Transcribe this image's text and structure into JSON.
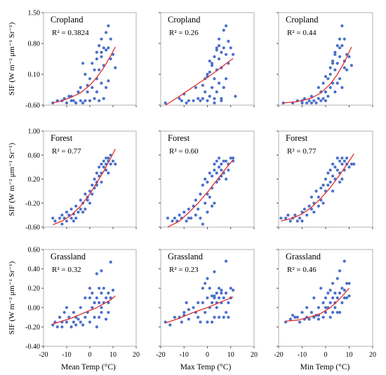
{
  "style": {
    "point_color": "#4a6fc9",
    "fit_color": "#e03030",
    "frame_color": "#b0b0b0"
  },
  "y_axis_label": "SIF (W m⁻² μm⁻¹ Sr⁻¹)",
  "x_axis_labels": [
    "Mean Temp (°C)",
    "Max Temp (°C)",
    "Min Temp (°C)"
  ],
  "x_ticks": [
    "-20",
    "-10",
    "0",
    "10",
    "20"
  ],
  "rows": [
    {
      "y_ticks": [
        "1.50",
        "0.80",
        "0.10",
        "-0.60"
      ]
    },
    {
      "y_ticks": [
        "1.00",
        "0.60",
        "0.20",
        "-0.20",
        "-0.60"
      ]
    },
    {
      "y_ticks": [
        "0.60",
        "0.40",
        "0.20",
        "0.00",
        "-0.20",
        "-0.40"
      ]
    }
  ],
  "chart_data": [
    {
      "type": "scatter",
      "title": "Cropland",
      "r2_label": "R² = 0.3824",
      "xlim": [
        -20,
        20
      ],
      "ylim": [
        -0.6,
        1.5
      ],
      "x_axis": "Mean Temp (°C)",
      "fit": "exponential",
      "x": [
        -16,
        -14,
        -12,
        -11,
        -10,
        -9,
        -8,
        -7,
        -6,
        -5,
        -4,
        -4,
        -3,
        -3,
        -2,
        -2,
        -1,
        -1,
        0,
        0,
        1,
        1,
        2,
        2,
        3,
        3,
        3,
        4,
        4,
        4,
        5,
        5,
        5,
        6,
        6,
        6,
        7,
        7,
        7,
        8,
        8,
        8,
        9,
        9,
        10,
        11,
        5,
        3,
        -6,
        -8
      ],
      "y": [
        -0.55,
        -0.5,
        -0.5,
        -0.45,
        -0.55,
        -0.4,
        -0.5,
        -0.5,
        -0.55,
        -0.3,
        -0.5,
        -0.2,
        -0.55,
        0.35,
        -0.5,
        0.1,
        -0.3,
        -0.15,
        -0.5,
        0.0,
        0.35,
        -0.2,
        0.2,
        -0.45,
        0.6,
        0.0,
        -0.3,
        0.75,
        0.2,
        -0.5,
        0.9,
        0.5,
        -0.1,
        0.7,
        0.3,
        -0.45,
        1.05,
        0.65,
        -0.2,
        1.2,
        0.7,
        -0.05,
        0.9,
        0.45,
        0.55,
        0.25,
        0.6,
        0.45,
        -0.55,
        -0.4
      ],
      "fit_x": [
        -16,
        -12,
        -8,
        -4,
        0,
        3,
        6,
        9,
        11
      ],
      "fit_y": [
        -0.55,
        -0.5,
        -0.42,
        -0.32,
        -0.15,
        0.03,
        0.25,
        0.52,
        0.72
      ]
    },
    {
      "type": "scatter",
      "title": "Cropland",
      "r2_label": "R² = 0.26",
      "xlim": [
        -20,
        20
      ],
      "ylim": [
        -0.6,
        1.5
      ],
      "x_axis": "Max Temp (°C)",
      "fit": "exponential",
      "x": [
        -18,
        -12,
        -11,
        -10,
        -9,
        -8,
        -6,
        -5,
        -4,
        -3,
        -2,
        -1,
        -1,
        0,
        0,
        1,
        1,
        2,
        2,
        3,
        3,
        3,
        4,
        4,
        4,
        5,
        5,
        5,
        6,
        6,
        6,
        7,
        7,
        7,
        8,
        8,
        8,
        9,
        9,
        10,
        11,
        12,
        -2,
        0,
        2,
        4,
        6,
        1,
        5,
        3
      ],
      "y": [
        -0.55,
        -0.45,
        -0.5,
        -0.35,
        -0.55,
        -0.5,
        -0.5,
        -0.2,
        -0.45,
        -0.5,
        -0.15,
        -0.3,
        0.0,
        -0.5,
        0.1,
        0.4,
        -0.4,
        0.3,
        -0.2,
        0.5,
        0.0,
        -0.45,
        0.65,
        0.2,
        -0.3,
        0.9,
        0.45,
        -0.1,
        0.6,
        0.25,
        -0.5,
        1.1,
        0.7,
        -0.2,
        1.2,
        0.55,
        0.0,
        0.85,
        0.35,
        0.7,
        0.55,
        -0.4,
        -0.45,
        0.05,
        0.35,
        0.7,
        -0.45,
        0.15,
        0.75,
        -0.55
      ],
      "fit_x": [
        -18,
        -12,
        -6,
        0,
        4,
        8,
        11
      ],
      "fit_y": [
        -0.6,
        -0.4,
        -0.18,
        0.03,
        0.18,
        0.34,
        0.46
      ]
    },
    {
      "type": "scatter",
      "title": "Cropland",
      "r2_label": "R² = 0.44",
      "xlim": [
        -20,
        20
      ],
      "ylim": [
        -0.6,
        1.5
      ],
      "x_axis": "Min Temp (°C)",
      "fit": "exponential",
      "x": [
        -18,
        -14,
        -12,
        -10,
        -9,
        -8,
        -7,
        -6,
        -5,
        -4,
        -3,
        -2,
        -2,
        -1,
        -1,
        0,
        0,
        1,
        1,
        2,
        2,
        3,
        3,
        4,
        4,
        4,
        5,
        5,
        5,
        6,
        6,
        6,
        7,
        7,
        7,
        8,
        8,
        9,
        9,
        10,
        11,
        -3,
        -6,
        0,
        2,
        4,
        6,
        8,
        -10,
        3
      ],
      "y": [
        -0.55,
        -0.55,
        -0.5,
        -0.5,
        -0.45,
        -0.55,
        -0.5,
        -0.4,
        -0.5,
        -0.55,
        -0.45,
        -0.3,
        -0.5,
        -0.1,
        -0.45,
        -0.3,
        -0.5,
        0.0,
        -0.4,
        0.25,
        -0.2,
        0.4,
        -0.1,
        0.6,
        0.2,
        -0.3,
        0.75,
        0.35,
        -0.1,
        0.9,
        0.5,
        0.0,
        1.2,
        0.75,
        -0.2,
        0.9,
        0.4,
        0.55,
        0.2,
        0.5,
        0.3,
        -0.2,
        -0.55,
        0.05,
        0.1,
        0.55,
        0.7,
        0.25,
        -0.55,
        0.35
      ],
      "fit_x": [
        -18,
        -12,
        -6,
        -2,
        2,
        5,
        8,
        11
      ],
      "fit_y": [
        -0.55,
        -0.52,
        -0.44,
        -0.32,
        -0.12,
        0.1,
        0.38,
        0.72
      ]
    },
    {
      "type": "scatter",
      "title": "Forest",
      "r2_label": "R² = 0.77",
      "xlim": [
        -20,
        20
      ],
      "ylim": [
        -0.6,
        1.0
      ],
      "x_axis": "Mean Temp (°C)",
      "fit": "polynomial",
      "x": [
        -16,
        -15,
        -13,
        -12,
        -11,
        -10,
        -10,
        -9,
        -8,
        -8,
        -7,
        -6,
        -6,
        -5,
        -4,
        -4,
        -3,
        -3,
        -2,
        -2,
        -1,
        0,
        0,
        1,
        1,
        2,
        2,
        3,
        3,
        4,
        4,
        5,
        5,
        5,
        6,
        6,
        7,
        7,
        7,
        8,
        8,
        8,
        9,
        9,
        10,
        11,
        -12,
        -7,
        3,
        -1
      ],
      "y": [
        -0.45,
        -0.5,
        -0.45,
        -0.4,
        -0.45,
        -0.5,
        -0.35,
        -0.4,
        -0.45,
        -0.3,
        -0.38,
        -0.45,
        -0.25,
        -0.35,
        -0.3,
        -0.15,
        -0.35,
        -0.2,
        -0.05,
        -0.3,
        -0.1,
        0.0,
        -0.2,
        0.1,
        -0.05,
        0.2,
        0.05,
        0.15,
        0.3,
        0.25,
        0.4,
        0.45,
        0.3,
        0.15,
        0.4,
        0.5,
        0.35,
        0.55,
        0.45,
        0.5,
        0.3,
        0.55,
        0.45,
        0.6,
        0.5,
        0.45,
        -0.55,
        -0.5,
        0.1,
        -0.15
      ],
      "fit_x": [
        -16,
        -12,
        -8,
        -4,
        0,
        3,
        6,
        9,
        11
      ],
      "fit_y": [
        -0.56,
        -0.5,
        -0.4,
        -0.25,
        -0.05,
        0.14,
        0.33,
        0.55,
        0.7
      ]
    },
    {
      "type": "scatter",
      "title": "Forest",
      "r2_label": "R² = 0.60",
      "xlim": [
        -20,
        20
      ],
      "ylim": [
        -0.6,
        1.0
      ],
      "x_axis": "Max Temp (°C)",
      "fit": "polynomial",
      "x": [
        -17,
        -15,
        -14,
        -13,
        -12,
        -11,
        -10,
        -9,
        -8,
        -7,
        -6,
        -5,
        -5,
        -4,
        -3,
        -3,
        -2,
        -1,
        -1,
        0,
        0,
        1,
        1,
        2,
        2,
        3,
        3,
        3,
        4,
        4,
        5,
        5,
        5,
        6,
        6,
        7,
        7,
        8,
        8,
        9,
        9,
        10,
        11,
        11,
        -2,
        0,
        2,
        4,
        6,
        -8
      ],
      "y": [
        -0.45,
        -0.5,
        -0.45,
        -0.5,
        -0.4,
        -0.45,
        -0.35,
        -0.5,
        -0.3,
        -0.45,
        -0.25,
        -0.4,
        -0.15,
        -0.3,
        -0.05,
        -0.45,
        0.1,
        -0.2,
        0.2,
        -0.35,
        0.15,
        -0.1,
        0.3,
        0.05,
        0.25,
        0.45,
        0.35,
        -0.2,
        0.5,
        0.3,
        0.4,
        0.2,
        0.55,
        0.35,
        0.45,
        0.5,
        0.3,
        0.5,
        0.2,
        0.45,
        0.35,
        0.55,
        0.55,
        0.5,
        -0.55,
        -0.05,
        -0.25,
        0.15,
        0.25,
        -0.45
      ],
      "fit_x": [
        -17,
        -12,
        -8,
        -4,
        0,
        3,
        6,
        9,
        11
      ],
      "fit_y": [
        -0.6,
        -0.5,
        -0.36,
        -0.2,
        -0.02,
        0.13,
        0.28,
        0.43,
        0.52
      ]
    },
    {
      "type": "scatter",
      "title": "Forest",
      "r2_label": "R² = 0.77",
      "xlim": [
        -20,
        20
      ],
      "ylim": [
        -0.6,
        1.0
      ],
      "x_axis": "Min Temp (°C)",
      "fit": "polynomial",
      "x": [
        -19,
        -17,
        -16,
        -15,
        -14,
        -13,
        -12,
        -11,
        -10,
        -10,
        -9,
        -8,
        -7,
        -6,
        -5,
        -5,
        -4,
        -3,
        -3,
        -2,
        -1,
        -1,
        0,
        0,
        1,
        1,
        2,
        2,
        3,
        3,
        4,
        4,
        5,
        5,
        6,
        6,
        7,
        7,
        7,
        8,
        8,
        9,
        9,
        10,
        11,
        12,
        -6,
        -2,
        3,
        6
      ],
      "y": [
        -0.45,
        -0.45,
        -0.4,
        -0.5,
        -0.45,
        -0.4,
        -0.5,
        -0.45,
        -0.35,
        -0.5,
        -0.3,
        -0.4,
        -0.25,
        -0.3,
        -0.2,
        -0.35,
        0.0,
        -0.1,
        -0.25,
        0.05,
        0.1,
        -0.2,
        0.2,
        0.0,
        0.3,
        0.1,
        0.35,
        0.15,
        0.45,
        0.25,
        0.4,
        0.2,
        0.55,
        0.35,
        0.5,
        0.3,
        0.55,
        0.45,
        0.2,
        0.5,
        0.35,
        0.45,
        0.55,
        0.4,
        0.45,
        0.45,
        -0.1,
        -0.15,
        0.0,
        0.15
      ],
      "fit_x": [
        -19,
        -14,
        -10,
        -6,
        -2,
        2,
        6,
        10,
        12
      ],
      "fit_y": [
        -0.5,
        -0.45,
        -0.38,
        -0.27,
        -0.12,
        0.06,
        0.27,
        0.5,
        0.62
      ]
    },
    {
      "type": "scatter",
      "title": "Grassland",
      "r2_label": "R² = 0.32",
      "xlim": [
        -20,
        20
      ],
      "ylim": [
        -0.4,
        0.6
      ],
      "x_axis": "Mean Temp (°C)",
      "fit": "exponential",
      "x": [
        -16,
        -15,
        -14,
        -13,
        -12,
        -11,
        -10,
        -10,
        -9,
        -8,
        -7,
        -7,
        -6,
        -5,
        -4,
        -4,
        -3,
        -2,
        -2,
        -1,
        0,
        0,
        0,
        1,
        1,
        2,
        2,
        3,
        3,
        3,
        4,
        4,
        4,
        5,
        5,
        5,
        6,
        6,
        7,
        7,
        8,
        8,
        8,
        9,
        9,
        10,
        -12,
        -6,
        2,
        5
      ],
      "y": [
        -0.18,
        -0.15,
        -0.2,
        -0.1,
        -0.2,
        -0.05,
        -0.15,
        0.0,
        -0.1,
        -0.2,
        -0.15,
        -0.05,
        -0.18,
        -0.12,
        -0.15,
        0.0,
        -0.18,
        -0.1,
        0.1,
        -0.05,
        0.2,
        0.1,
        -0.15,
        0.0,
        0.15,
        0.05,
        -0.1,
        0.35,
        0.1,
        -0.2,
        0.2,
        0.05,
        -0.1,
        0.38,
        0.15,
        0.0,
        0.2,
        0.05,
        0.1,
        -0.12,
        0.15,
        0.05,
        -0.05,
        0.47,
        0.1,
        0.18,
        -0.15,
        -0.1,
        0.05,
        -0.05
      ],
      "fit_x": [
        -16,
        -12,
        -8,
        -4,
        0,
        3,
        6,
        9,
        11
      ],
      "fit_y": [
        -0.17,
        -0.14,
        -0.11,
        -0.07,
        -0.03,
        0.0,
        0.04,
        0.08,
        0.12
      ]
    },
    {
      "type": "scatter",
      "title": "Grassland",
      "r2_label": "R² = 0.23",
      "xlim": [
        -20,
        20
      ],
      "ylim": [
        -0.4,
        0.6
      ],
      "x_axis": "Max Temp (°C)",
      "fit": "exponential",
      "x": [
        -18,
        -16,
        -14,
        -12,
        -11,
        -10,
        -9,
        -8,
        -8,
        -6,
        -5,
        -4,
        -3,
        -2,
        -2,
        -1,
        0,
        0,
        0,
        1,
        1,
        2,
        2,
        3,
        3,
        3,
        4,
        4,
        5,
        5,
        5,
        6,
        6,
        7,
        7,
        8,
        8,
        9,
        9,
        10,
        11,
        -4,
        -1,
        2,
        4,
        6,
        8,
        10,
        -10,
        3
      ],
      "y": [
        -0.15,
        -0.18,
        -0.1,
        -0.1,
        -0.15,
        -0.05,
        0.05,
        -0.12,
        -0.02,
        0.0,
        -0.05,
        0.05,
        -0.15,
        0.2,
        0.05,
        -0.05,
        0.3,
        0.1,
        -0.15,
        0.2,
        0.0,
        0.05,
        -0.15,
        0.37,
        0.1,
        -0.1,
        0.15,
        0.0,
        0.2,
        0.1,
        -0.1,
        0.15,
        0.05,
        0.1,
        -0.1,
        0.48,
        0.15,
        0.05,
        -0.1,
        0.2,
        0.18,
        -0.1,
        0.25,
        0.12,
        0.05,
        0.18,
        -0.05,
        0.1,
        -0.08,
        0.12
      ],
      "fit_x": [
        -18,
        -12,
        -6,
        0,
        4,
        8,
        11
      ],
      "fit_y": [
        -0.16,
        -0.11,
        -0.05,
        0.0,
        0.04,
        0.08,
        0.11
      ]
    },
    {
      "type": "scatter",
      "title": "Grassland",
      "r2_label": "R² = 0.46",
      "xlim": [
        -20,
        20
      ],
      "ylim": [
        -0.4,
        0.6
      ],
      "x_axis": "Min Temp (°C)",
      "fit": "exponential",
      "x": [
        -17,
        -15,
        -14,
        -13,
        -12,
        -11,
        -10,
        -9,
        -8,
        -8,
        -7,
        -6,
        -5,
        -5,
        -4,
        -3,
        -3,
        -2,
        -1,
        -1,
        0,
        0,
        1,
        1,
        2,
        2,
        3,
        3,
        3,
        4,
        4,
        5,
        5,
        5,
        6,
        6,
        7,
        7,
        8,
        8,
        9,
        9,
        10,
        10,
        -3,
        0,
        2,
        4,
        6,
        8
      ],
      "y": [
        -0.15,
        -0.12,
        -0.08,
        -0.1,
        -0.1,
        -0.15,
        -0.05,
        -0.12,
        -0.1,
        0.0,
        -0.12,
        -0.05,
        -0.1,
        0.1,
        -0.08,
        0.0,
        -0.12,
        0.2,
        0.05,
        -0.1,
        0.1,
        -0.05,
        0.15,
        0.0,
        0.05,
        -0.1,
        0.25,
        0.1,
        -0.05,
        0.15,
        0.0,
        0.3,
        0.1,
        -0.05,
        0.38,
        0.15,
        0.2,
        0.05,
        0.48,
        0.18,
        0.25,
        0.1,
        0.12,
        0.25,
        -0.08,
        0.0,
        0.18,
        0.05,
        -0.05,
        0.1
      ],
      "fit_x": [
        -17,
        -12,
        -7,
        -2,
        2,
        6,
        10
      ],
      "fit_y": [
        -0.14,
        -0.13,
        -0.1,
        -0.06,
        0.0,
        0.09,
        0.2
      ]
    }
  ]
}
